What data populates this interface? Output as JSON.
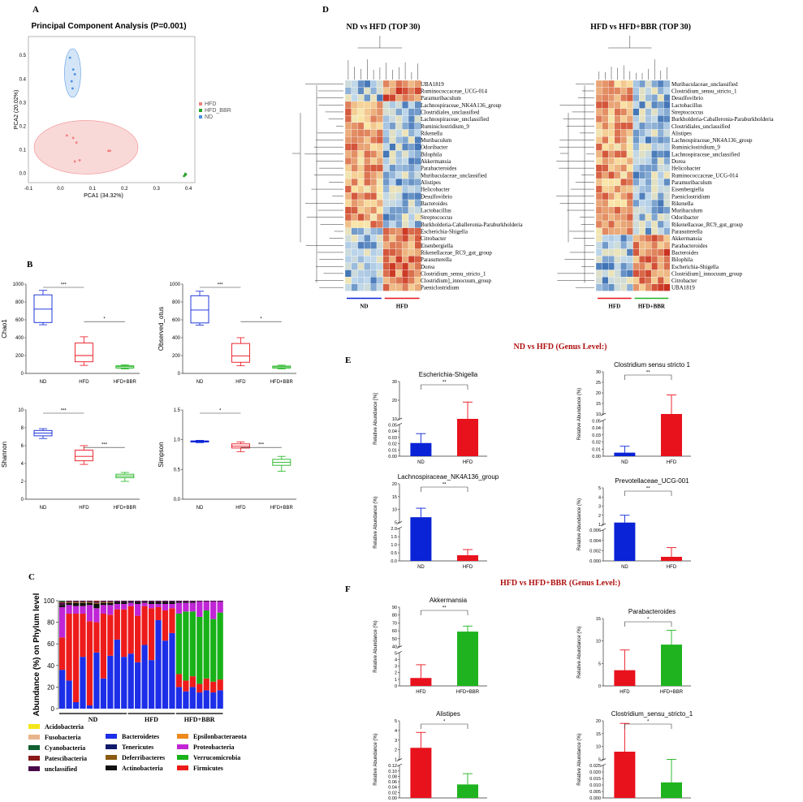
{
  "panels": {
    "A": "A",
    "B": "B",
    "C": "C",
    "D": "D",
    "E": "E",
    "F": "F"
  },
  "colors": {
    "ND": "#0a23d6",
    "HFD": "#e8121d",
    "HFD_BBR": "#1fb41f",
    "pca_ND": "#4a90e2",
    "pca_HFD": "#f08080",
    "pca_BBR": "#29a329",
    "heat_high": "#c9301f",
    "heat_mid": "#fbe7a7",
    "heat_low": "#3b6fb3",
    "section_title": "#b01010"
  },
  "chart_data": [
    {
      "id": "pca",
      "type": "scatter",
      "title": "Principal Component Analysis (P=0.001)",
      "xlabel": "PCA1 (34.32%)",
      "ylabel": "PCA2 (20.02%)",
      "xlim": [
        -0.1,
        0.42
      ],
      "ylim": [
        -0.04,
        0.58
      ],
      "xticks": [
        "-0.1",
        "0.0",
        "0.1",
        "0.2",
        "0.3",
        "0.4"
      ],
      "yticks": [
        "0.0",
        "0.1",
        "0.2",
        "0.3",
        "0.4",
        "0.5"
      ],
      "legend": [
        "HFD",
        "HFD_BBR",
        "ND"
      ],
      "series": [
        {
          "name": "HFD",
          "x": [
            0.02,
            0.04,
            0.05,
            0.15,
            0.155,
            0.06,
            0.045
          ],
          "y": [
            0.16,
            0.15,
            0.13,
            0.095,
            0.095,
            0.055,
            0.05
          ]
        },
        {
          "name": "HFD_BBR",
          "x": [
            0.388,
            0.392,
            0.39,
            0.386
          ],
          "y": [
            -0.01,
            -0.005,
            -0.002,
            -0.012
          ]
        },
        {
          "name": "ND",
          "x": [
            0.03,
            0.04,
            0.045,
            0.035,
            0.038
          ],
          "y": [
            0.49,
            0.44,
            0.42,
            0.39,
            0.36
          ]
        }
      ]
    },
    {
      "id": "box_chao1",
      "type": "box",
      "ylabel": "Chao1",
      "categories": [
        "ND",
        "HFD",
        "HFD+BBR"
      ],
      "ylim": [
        0,
        1000
      ],
      "yticks": [
        "0",
        "200",
        "400",
        "600",
        "800",
        "1000"
      ],
      "boxes": [
        [
          545,
          570,
          720,
          880,
          930
        ],
        [
          90,
          130,
          200,
          340,
          410
        ],
        [
          50,
          60,
          75,
          85,
          95
        ]
      ],
      "sig": [
        {
          "from": 0,
          "to": 1,
          "label": "***"
        },
        {
          "from": 1,
          "to": 2,
          "label": "*"
        }
      ]
    },
    {
      "id": "box_observed",
      "type": "box",
      "ylabel": "Observed_otus",
      "categories": [
        "ND",
        "HFD",
        "HFD+BBR"
      ],
      "ylim": [
        0,
        1000
      ],
      "yticks": [
        "0",
        "200",
        "400",
        "600",
        "800",
        "1000"
      ],
      "boxes": [
        [
          540,
          565,
          710,
          870,
          920
        ],
        [
          85,
          125,
          195,
          335,
          400
        ],
        [
          50,
          60,
          72,
          82,
          92
        ]
      ],
      "sig": [
        {
          "from": 0,
          "to": 1,
          "label": "***"
        },
        {
          "from": 1,
          "to": 2,
          "label": "*"
        }
      ]
    },
    {
      "id": "box_shannon",
      "type": "box",
      "ylabel": "Shannon",
      "categories": [
        "ND",
        "HFD",
        "HFD+BBR"
      ],
      "ylim": [
        0,
        10
      ],
      "yticks": [
        "0",
        "2",
        "4",
        "6",
        "8",
        "10"
      ],
      "boxes": [
        [
          6.8,
          7.1,
          7.4,
          7.7,
          7.9
        ],
        [
          3.9,
          4.3,
          4.8,
          5.5,
          6.0
        ],
        [
          2.0,
          2.4,
          2.6,
          2.8,
          3.0
        ]
      ],
      "sig": [
        {
          "from": 0,
          "to": 1,
          "label": "***"
        },
        {
          "from": 1,
          "to": 2,
          "label": "***"
        }
      ]
    },
    {
      "id": "box_simpson",
      "type": "box",
      "ylabel": "Simpson",
      "categories": [
        "ND",
        "HFD",
        "HFD+BBR"
      ],
      "ylim": [
        0,
        1.5
      ],
      "yticks": [
        "0.0",
        "0.5",
        "1.0",
        "1.5"
      ],
      "boxes": [
        [
          0.95,
          0.96,
          0.97,
          0.98,
          0.99
        ],
        [
          0.8,
          0.86,
          0.89,
          0.93,
          0.96
        ],
        [
          0.47,
          0.57,
          0.62,
          0.67,
          0.72
        ]
      ],
      "sig": [
        {
          "from": 0,
          "to": 1,
          "label": "*"
        },
        {
          "from": 1,
          "to": 2,
          "label": "***"
        }
      ]
    },
    {
      "id": "phylum",
      "type": "stacked_bar",
      "ylabel": "Abundance (%) on Phylum level",
      "ylim": [
        0,
        100
      ],
      "yticks": [
        "0",
        "20",
        "40",
        "60",
        "80",
        "100"
      ],
      "groups": [
        {
          "label": "ND",
          "n": 10
        },
        {
          "label": "HFD",
          "n": 7
        },
        {
          "label": "HFD+BBR",
          "n": 7
        }
      ],
      "phyla": [
        "Bacteroidetes",
        "Firmicutes",
        "Verrucomicrobia",
        "Proteobacteria",
        "Actinobacteria",
        "Epsilonbacteraeota",
        "Deferribacteres",
        "Tenericutes",
        "unclassified",
        "Patescibacteria",
        "Cyanobacteria",
        "Fusobacteria",
        "Acidobacteria"
      ],
      "phylum_colors": [
        "#1c2ee8",
        "#ee1b1b",
        "#18b218",
        "#c025d6",
        "#111111",
        "#ee8a1c",
        "#8b5a10",
        "#101a6a",
        "#4a0a4a",
        "#8b1a1a",
        "#0f5f2f",
        "#e8b48c",
        "#f5e61c"
      ],
      "samples": [
        [
          36,
          30,
          0,
          28,
          2,
          0,
          0,
          0,
          2,
          1,
          1,
          0,
          0
        ],
        [
          26,
          62,
          0,
          8,
          2,
          0,
          1,
          0,
          1,
          0,
          0,
          0,
          0
        ],
        [
          6,
          82,
          0,
          7,
          3,
          0,
          1,
          0,
          1,
          0,
          0,
          0,
          0
        ],
        [
          48,
          40,
          0,
          7,
          3,
          0,
          1,
          0,
          1,
          0,
          0,
          0,
          0
        ],
        [
          3,
          78,
          0,
          15,
          2,
          0,
          1,
          0,
          1,
          0,
          0,
          0,
          0
        ],
        [
          52,
          28,
          0,
          13,
          4,
          0,
          1,
          0,
          1,
          1,
          0,
          0,
          0
        ],
        [
          28,
          60,
          0,
          8,
          2,
          0,
          1,
          0,
          1,
          0,
          0,
          0,
          0
        ],
        [
          49,
          38,
          0,
          9,
          2,
          0,
          1,
          0,
          1,
          0,
          0,
          0,
          0
        ],
        [
          64,
          28,
          0,
          5,
          2,
          0,
          0,
          0,
          1,
          0,
          0,
          0,
          0
        ],
        [
          48,
          44,
          0,
          5,
          2,
          0,
          0,
          0,
          1,
          0,
          0,
          0,
          0
        ],
        [
          51,
          44,
          0,
          3,
          1,
          0,
          0,
          0,
          1,
          0,
          0,
          0,
          0
        ],
        [
          43,
          43,
          0,
          11,
          2,
          0,
          0,
          0,
          1,
          0,
          0,
          0,
          0
        ],
        [
          59,
          36,
          0,
          3,
          1,
          0,
          0,
          0,
          1,
          0,
          0,
          0,
          0
        ],
        [
          45,
          48,
          0,
          4,
          2,
          0,
          0,
          0,
          1,
          0,
          0,
          0,
          0
        ],
        [
          82,
          12,
          0,
          3,
          2,
          0,
          0,
          0,
          1,
          0,
          0,
          0,
          0
        ],
        [
          63,
          28,
          0,
          6,
          2,
          0,
          0,
          0,
          1,
          0,
          0,
          0,
          0
        ],
        [
          70,
          23,
          0,
          4,
          2,
          0,
          0,
          0,
          1,
          0,
          0,
          0,
          0
        ],
        [
          20,
          12,
          56,
          10,
          1,
          0,
          0,
          0,
          1,
          0,
          0,
          0,
          0
        ],
        [
          16,
          10,
          64,
          8,
          1,
          0,
          0,
          0,
          1,
          0,
          0,
          0,
          0
        ],
        [
          20,
          10,
          60,
          8,
          1,
          0,
          0,
          0,
          1,
          0,
          0,
          0,
          0
        ],
        [
          15,
          8,
          62,
          14,
          0,
          0,
          0,
          0,
          1,
          0,
          0,
          0,
          0
        ],
        [
          17,
          11,
          63,
          8,
          0,
          0,
          0,
          0,
          1,
          0,
          0,
          0,
          0
        ],
        [
          15,
          10,
          58,
          16,
          0,
          0,
          0,
          0,
          1,
          0,
          0,
          0,
          0
        ],
        [
          17,
          10,
          62,
          10,
          0,
          0,
          0,
          0,
          1,
          0,
          0,
          0,
          0
        ]
      ],
      "legend_col1": [
        "Acidobacteria",
        "Fusobacteria",
        "Cyanobacteria",
        "Patescibacteria",
        "unclassified"
      ],
      "legend_col2": [
        "Bacteroidetes",
        "Tenericutes",
        "Deferribacteres",
        "Actinobacteria"
      ],
      "legend_col3": [
        "Epsilonbacteraeota",
        "Proteobacteria",
        "Verrucomicrobia",
        "Firmicutes"
      ]
    },
    {
      "id": "heat1",
      "type": "heatmap",
      "title": "ND vs HFD (TOP 30)",
      "groups": [
        {
          "label": "ND",
          "n": 6
        },
        {
          "label": "HFD",
          "n": 6
        }
      ],
      "rows": [
        "UBA1819",
        "Ruminococcaceae_UCG-014",
        "Paramuribaculum",
        "Lachnospiraceae_NK4A136_group",
        "Clostridiales_unclassified",
        "Lachnospiraceae_unclassified",
        "Ruminiclostridium_9",
        "Rikenella",
        "Muribaculum",
        "Odoribacter",
        "Bilophila",
        "Akkermansia",
        "Parabacteroides",
        "Muribaculaceae_unclassified",
        "Alistipes",
        "Helicobacter",
        "Desulfovibrio",
        "Bacteroides",
        "Lactobacillus",
        "Streptococcus",
        "Burkholderia-Caballeronia-Paraburkholderia",
        "Escherichia-Shigella",
        "Citrobacter",
        "Eisenbergiella",
        "Rikenellaceae_RC9_gut_group",
        "Parasutterella",
        "Dorea",
        "Clostridium_sensu_stricto_1",
        "Clostridium]_innocuum_group",
        "Paeniclostridium"
      ]
    },
    {
      "id": "heat2",
      "type": "heatmap",
      "title": "HFD vs HFD+BBR (TOP 30)",
      "groups": [
        {
          "label": "HFD",
          "n": 6
        },
        {
          "label": "HFD+BBR",
          "n": 6
        }
      ],
      "rows": [
        "Muribaculaceae_unclassified",
        "Clostridium_sensu_stricto_1",
        "Desulfovibrio",
        "Lactobacillus",
        "Streptococcus",
        "Burkholderia-Caballeronia-Paraburkholderia",
        "Clostridiales_unclassified",
        "Alistipes",
        "Lachnospiraceae_NK4A136_group",
        "Ruminiclostridium_9",
        "Lachnospiraceae_unclassified",
        "Dorea",
        "Helicobacter",
        "Ruminococcaceae_UCG-014",
        "Paramuribaculum",
        "Eisenbergiella",
        "Paeniclostridium",
        "Rikenella",
        "Muribaculum",
        "Odoribacter",
        "Rikenellaceae_RC9_gut_group",
        "Parasutterella",
        "Akkermansia",
        "Parabacteroides",
        "Bacteroides",
        "Bilophila",
        "Escherichia-Shigella",
        "Clostridium]_innocuum_group",
        "Citrobacter",
        "UBA1819"
      ]
    },
    {
      "id": "E1",
      "type": "bar",
      "title": "Escherichia-Shigella",
      "ylabel": "Relative Abundance [%]",
      "categories": [
        "ND",
        "HFD"
      ],
      "values": [
        0.021,
        9
      ],
      "errors": [
        0.015,
        10
      ],
      "sig": "**",
      "top_ticks": [
        "10",
        "20",
        "30"
      ],
      "bottom_ticks": [
        "0.00",
        "0.01",
        "0.02",
        "0.03",
        "0.04",
        "0.05"
      ]
    },
    {
      "id": "E2",
      "type": "bar",
      "title": "Clostridium sensu stricto 1",
      "ylabel": "Relative Abundance (%)",
      "categories": [
        "ND",
        "HFD"
      ],
      "values": [
        0.005,
        9
      ],
      "errors": [
        0.009,
        10
      ],
      "sig": "**",
      "top_ticks": [
        "10",
        "15",
        "20",
        "25",
        "30"
      ],
      "bottom_ticks": [
        "0.00",
        "0.01",
        "0.02",
        "0.03",
        "0.04",
        "0.05"
      ]
    },
    {
      "id": "E3",
      "type": "bar",
      "title": "Lachnospiraceae_NK4A136_group",
      "ylabel": "Relative Abundance (%)",
      "categories": [
        "ND",
        "HFD"
      ],
      "values": [
        7,
        0.35
      ],
      "errors": [
        3.5,
        0.35
      ],
      "sig": "**",
      "top_ticks": [
        "5",
        "10",
        "15",
        "20"
      ],
      "bottom_ticks": [
        "0.0",
        "0.5",
        "1.0",
        "1.5",
        "2.0"
      ]
    },
    {
      "id": "E4",
      "type": "bar",
      "title": "Prevotellaceae_UCG-001",
      "ylabel": "Relative Abundance (%)",
      "categories": [
        "ND",
        "HFD"
      ],
      "values": [
        1.2,
        0.0008
      ],
      "errors": [
        0.8,
        0.0018
      ],
      "sig": "**",
      "top_ticks": [
        "1",
        "2",
        "3",
        "4",
        "5"
      ],
      "bottom_ticks": [
        "0.000",
        "0.002",
        "0.004",
        "0.006"
      ]
    },
    {
      "id": "F1",
      "type": "bar",
      "title": "Akkermansia",
      "ylabel": "Relative Abundance (%)",
      "categories": [
        "HFD",
        "HFD+BBR"
      ],
      "values": [
        1.2,
        59
      ],
      "errors": [
        2.0,
        7
      ],
      "sig": "**",
      "top_ticks": [
        "40",
        "50",
        "60",
        "70",
        "80",
        "90"
      ],
      "bottom_ticks": [
        "0",
        "1",
        "2",
        "3",
        "4",
        "5"
      ]
    },
    {
      "id": "F2",
      "type": "bar",
      "title": "Parabacteroides",
      "ylabel": "Relative Abundance (%)",
      "categories": [
        "HFD",
        "HFD+BBR"
      ],
      "values": [
        3.5,
        9.2
      ],
      "errors": [
        4.5,
        3.2
      ],
      "sig": "*",
      "ylim": [
        0,
        15
      ],
      "ticks": [
        "0",
        "5",
        "10",
        "15"
      ]
    },
    {
      "id": "F3",
      "type": "bar",
      "title": "Alistipes",
      "ylabel": "Relative Abundance (%)",
      "categories": [
        "HFD",
        "HFD+BBR"
      ],
      "values": [
        2.2,
        0.05
      ],
      "errors": [
        1.6,
        0.04
      ],
      "sig": "*",
      "top_ticks": [
        "1",
        "2",
        "3",
        "4",
        "5"
      ],
      "bottom_ticks": [
        "0.00",
        "0.02",
        "0.04",
        "0.06",
        "0.08",
        "0.10",
        "0.12"
      ]
    },
    {
      "id": "F4",
      "type": "bar",
      "title": "Clostridium_sensu_stricto_1",
      "ylabel": "Relative Abundance (%)",
      "categories": [
        "HFD",
        "HFD+BBR"
      ],
      "values": [
        8,
        0.012
      ],
      "errors": [
        11,
        0.015
      ],
      "sig": "*",
      "top_ticks": [
        "5",
        "10",
        "15",
        "20"
      ],
      "bottom_ticks": [
        "0.000",
        "0.005",
        "0.010",
        "0.015",
        "0.020",
        "0.025"
      ]
    }
  ],
  "section_E_title": "ND  vs  HFD (Genus Level:)",
  "section_F_title": "HFD  vs  HFD+BBR (Genus Level:)"
}
